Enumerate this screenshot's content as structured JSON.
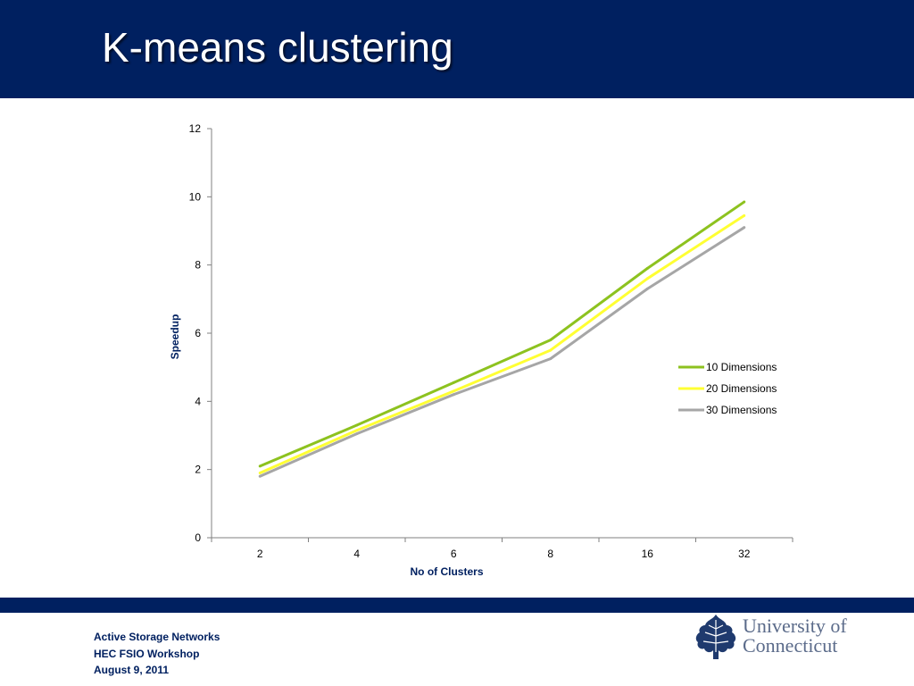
{
  "slide": {
    "title": "K-means clustering"
  },
  "footer": {
    "line1": "Active Storage Networks",
    "line2": "HEC FSIO Workshop",
    "line3": "August 9, 2011"
  },
  "logo": {
    "line1": "University of",
    "line2": "Connecticut",
    "icon": "oak-leaf-icon"
  },
  "colors": {
    "header": "#002060",
    "axis_title": "#002060"
  },
  "chart_data": {
    "type": "line",
    "categories": [
      "2",
      "4",
      "6",
      "8",
      "16",
      "32"
    ],
    "series": [
      {
        "name": "10 Dimensions",
        "color": "#8dc21f",
        "values": [
          2.1,
          3.3,
          4.55,
          5.8,
          7.9,
          9.85
        ]
      },
      {
        "name": "20 Dimensions",
        "color": "#ffff33",
        "values": [
          1.9,
          3.15,
          4.3,
          5.5,
          7.6,
          9.45
        ]
      },
      {
        "name": "30 Dimensions",
        "color": "#a6a6a6",
        "values": [
          1.8,
          3.05,
          4.2,
          5.25,
          7.3,
          9.1
        ]
      }
    ],
    "xlabel": "No of Clusters",
    "ylabel": "Speedup",
    "ylim": [
      0,
      12
    ],
    "yticks": [
      "0",
      "2",
      "4",
      "6",
      "8",
      "10",
      "12"
    ],
    "grid": false,
    "legend_position": "right"
  }
}
